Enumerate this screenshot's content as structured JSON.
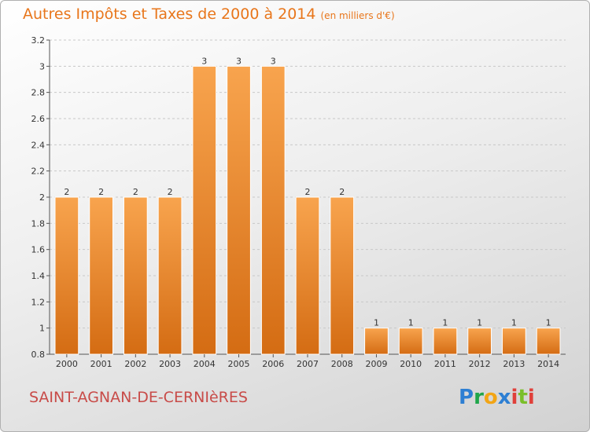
{
  "title": "Autres Impôts et Taxes de 2000 à 2014",
  "unit": "(en milliers d'€)",
  "commune": "SAINT-AGNAN-DE-CERNIèRES",
  "logo": {
    "letters": [
      "P",
      "r",
      "o",
      "x",
      "i",
      "t",
      "i"
    ]
  },
  "chart_data": {
    "type": "bar",
    "title": "Autres Impôts et Taxes de 2000 à 2014",
    "categories": [
      "2000",
      "2001",
      "2002",
      "2003",
      "2004",
      "2005",
      "2006",
      "2007",
      "2008",
      "2009",
      "2010",
      "2011",
      "2012",
      "2013",
      "2014"
    ],
    "values": [
      2,
      2,
      2,
      2,
      3,
      3,
      3,
      2,
      2,
      1,
      1,
      1,
      1,
      1,
      1
    ],
    "data_labels": [
      "2",
      "2",
      "2",
      "2",
      "3",
      "3",
      "3",
      "2",
      "2",
      "1",
      "1",
      "1",
      "1",
      "1",
      "1"
    ],
    "ylim": [
      0.8,
      3.2
    ],
    "yticks": [
      0.8,
      1,
      1.2,
      1.4,
      1.6,
      1.8,
      2,
      2.2,
      2.4,
      2.6,
      2.8,
      3,
      3.2
    ],
    "ytick_labels": [
      "0.8",
      "1",
      "1.2",
      "1.4",
      "1.6",
      "1.8",
      "2",
      "2.2",
      "2.4",
      "2.6",
      "2.8",
      "3",
      "3.2"
    ],
    "grid": true,
    "bar_color": "#f08a28",
    "xlabel": "",
    "ylabel": ""
  }
}
